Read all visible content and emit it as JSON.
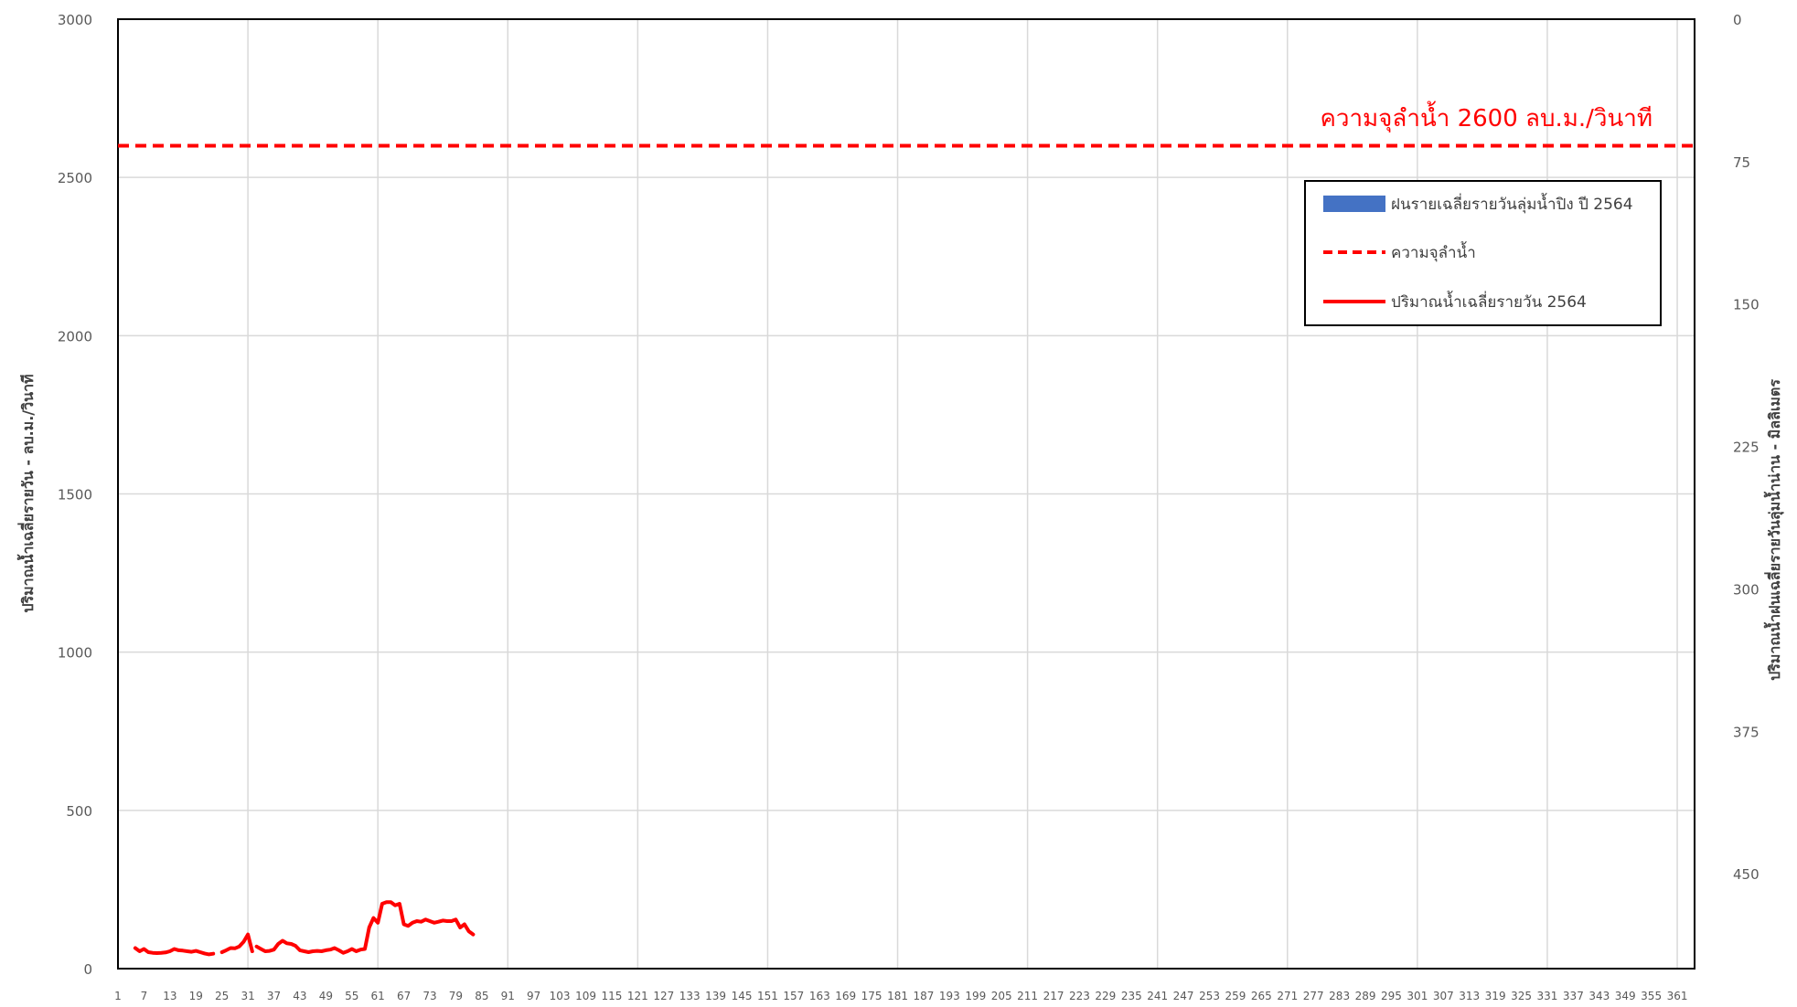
{
  "chart_data": {
    "type": "line",
    "title": "",
    "xlabel": "",
    "ylabel": "ปริมาณน้ำเฉลี่ยรายวัน - ลบ.ม./วินาที",
    "y2label": "ปริมาณน้ำฝนเฉลี่ยรายวันลุ่มน้ำน่าน - มิลลิเมตร",
    "xlim": [
      1,
      365
    ],
    "ylim": [
      0,
      3000
    ],
    "y2lim": [
      0,
      500
    ],
    "y2_inverted": true,
    "grid": true,
    "legend_position": "top-right",
    "x_ticks": [
      1,
      7,
      13,
      19,
      25,
      31,
      37,
      43,
      49,
      55,
      61,
      67,
      73,
      79,
      85,
      91,
      97,
      103,
      109,
      115,
      121,
      127,
      133,
      139,
      145,
      151,
      157,
      163,
      169,
      175,
      181,
      187,
      193,
      199,
      205,
      211,
      217,
      223,
      229,
      235,
      241,
      247,
      253,
      259,
      265,
      271,
      277,
      283,
      289,
      295,
      301,
      307,
      313,
      319,
      325,
      331,
      337,
      343,
      349,
      355,
      361
    ],
    "y_ticks": [
      0,
      500,
      1000,
      1500,
      2000,
      2500,
      3000
    ],
    "y2_ticks": [
      0,
      75,
      150,
      225,
      300,
      375,
      450
    ],
    "annotation": "ความจุลำน้ำ 2600 ลบ.ม./วินาที",
    "series": [
      {
        "name": "ฝนรายเฉลี่ยรายวันลุ่มน้ำปิง ปี 2564",
        "type": "bar",
        "axis": "y2",
        "color": "#4472c4",
        "values": []
      },
      {
        "name": "ความจุลำน้ำ",
        "type": "hline",
        "color": "#ff0000",
        "dashed": true,
        "value": 2600
      },
      {
        "name": "ปริมาณน้ำเฉลี่ยรายวัน 2564",
        "type": "line",
        "color": "#ff0000",
        "segments": [
          {
            "x": [
              5,
              6,
              7,
              8,
              9,
              10,
              11,
              12,
              13,
              14,
              15,
              16,
              17,
              18,
              19,
              20,
              21,
              22,
              23
            ],
            "y": [
              65,
              55,
              62,
              52,
              50,
              49,
              50,
              51,
              55,
              62,
              58,
              57,
              55,
              53,
              56,
              52,
              48,
              45,
              47
            ]
          },
          {
            "x": [
              25,
              26,
              27,
              28,
              29,
              30,
              31,
              32
            ],
            "y": [
              52,
              58,
              65,
              64,
              70,
              85,
              108,
              55
            ]
          },
          {
            "x": [
              33,
              34,
              35,
              36,
              37,
              38,
              39,
              40,
              41,
              42,
              43,
              44,
              45,
              46,
              47,
              48,
              49,
              50,
              51,
              52,
              53,
              54,
              55,
              56,
              57,
              58,
              59,
              60,
              61,
              62,
              63,
              64,
              65,
              66,
              67,
              68,
              69,
              70,
              71,
              72,
              73,
              74,
              75,
              76,
              77,
              78,
              79,
              80,
              81,
              82,
              83
            ],
            "y": [
              70,
              62,
              55,
              56,
              60,
              78,
              88,
              80,
              78,
              72,
              58,
              55,
              52,
              55,
              56,
              55,
              58,
              60,
              65,
              58,
              50,
              55,
              62,
              55,
              60,
              62,
              130,
              160,
              145,
              205,
              210,
              210,
              200,
              205,
              140,
              135,
              145,
              150,
              148,
              155,
              150,
              145,
              148,
              152,
              150,
              150,
              155,
              130,
              140,
              118,
              108
            ]
          }
        ]
      }
    ]
  }
}
